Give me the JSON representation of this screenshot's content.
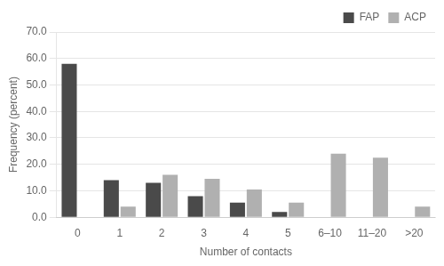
{
  "chart_data": {
    "type": "bar",
    "categories": [
      "0",
      "1",
      "2",
      "3",
      "4",
      "5",
      "6–10",
      "11–20",
      ">20"
    ],
    "series": [
      {
        "name": "FAP",
        "color": "#4a4a4a",
        "values": [
          58.0,
          14.0,
          13.0,
          8.0,
          5.5,
          2.0,
          0.0,
          0.0,
          0.0
        ]
      },
      {
        "name": "ACP",
        "color": "#b0b0b0",
        "values": [
          0.0,
          4.0,
          16.0,
          14.5,
          10.5,
          5.5,
          24.0,
          22.5,
          4.0
        ]
      }
    ],
    "xlabel": "Number of contacts",
    "ylabel": "Frequency (percent)",
    "ylim": [
      0.0,
      70.0
    ],
    "yticks": [
      {
        "value": 0,
        "label": "0.0"
      },
      {
        "value": 10,
        "label": "10.0"
      },
      {
        "value": 20,
        "label": "20.0"
      },
      {
        "value": 30,
        "label": "30.0"
      },
      {
        "value": 40,
        "label": "40.0"
      },
      {
        "value": 50,
        "label": "50.0"
      },
      {
        "value": 60,
        "label": "60.0"
      },
      {
        "value": 70,
        "label": "70.0"
      }
    ],
    "grid": true,
    "legend": "upper right"
  }
}
